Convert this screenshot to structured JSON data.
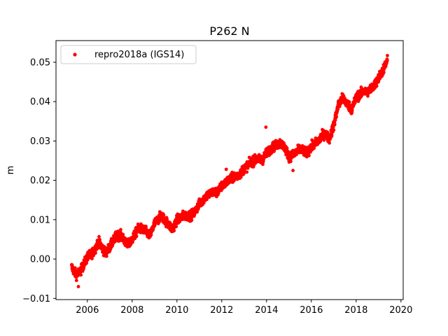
{
  "chart_data": {
    "type": "scatter",
    "title": "P262 N",
    "xlabel": "",
    "ylabel": "m",
    "xlim": [
      2004.6,
      2020.1
    ],
    "ylim": [
      -0.0103,
      0.0555
    ],
    "xticks": [
      2006,
      2008,
      2010,
      2012,
      2014,
      2016,
      2018,
      2020
    ],
    "yticks": [
      -0.01,
      0.0,
      0.01,
      0.02,
      0.03,
      0.04,
      0.05
    ],
    "ytick_labels": [
      "−0.01",
      "0.00",
      "0.01",
      "0.02",
      "0.03",
      "0.04",
      "0.05"
    ],
    "grid": false,
    "legend_position": "upper-left",
    "colors": {
      "series": "#ff0000",
      "axes": "#000000"
    },
    "series": [
      {
        "name": "repro2018a (IGS14)",
        "marker": "dot",
        "trend_points": [
          [
            2005.3,
            -0.002
          ],
          [
            2005.5,
            -0.004
          ],
          [
            2005.7,
            -0.003
          ],
          [
            2006.0,
            0.0005
          ],
          [
            2006.3,
            0.002
          ],
          [
            2006.5,
            0.0045
          ],
          [
            2006.8,
            0.0015
          ],
          [
            2007.0,
            0.003
          ],
          [
            2007.3,
            0.006
          ],
          [
            2007.5,
            0.006
          ],
          [
            2007.8,
            0.0035
          ],
          [
            2008.0,
            0.005
          ],
          [
            2008.3,
            0.008
          ],
          [
            2008.6,
            0.007
          ],
          [
            2008.8,
            0.006
          ],
          [
            2009.0,
            0.009
          ],
          [
            2009.3,
            0.011
          ],
          [
            2009.6,
            0.009
          ],
          [
            2009.8,
            0.0075
          ],
          [
            2010.0,
            0.01
          ],
          [
            2010.3,
            0.011
          ],
          [
            2010.6,
            0.011
          ],
          [
            2010.8,
            0.012
          ],
          [
            2011.0,
            0.014
          ],
          [
            2011.3,
            0.016
          ],
          [
            2011.6,
            0.017
          ],
          [
            2011.8,
            0.017
          ],
          [
            2012.0,
            0.0185
          ],
          [
            2012.3,
            0.02
          ],
          [
            2012.6,
            0.021
          ],
          [
            2012.8,
            0.0215
          ],
          [
            2013.0,
            0.023
          ],
          [
            2013.3,
            0.0245
          ],
          [
            2013.6,
            0.0255
          ],
          [
            2013.8,
            0.025
          ],
          [
            2014.0,
            0.027
          ],
          [
            2014.3,
            0.0285
          ],
          [
            2014.6,
            0.0295
          ],
          [
            2014.8,
            0.0285
          ],
          [
            2015.0,
            0.026
          ],
          [
            2015.2,
            0.0265
          ],
          [
            2015.5,
            0.028
          ],
          [
            2015.8,
            0.027
          ],
          [
            2016.0,
            0.0285
          ],
          [
            2016.3,
            0.03
          ],
          [
            2016.6,
            0.032
          ],
          [
            2016.8,
            0.0305
          ],
          [
            2017.0,
            0.034
          ],
          [
            2017.2,
            0.039
          ],
          [
            2017.4,
            0.041
          ],
          [
            2017.6,
            0.0395
          ],
          [
            2017.8,
            0.038
          ],
          [
            2018.0,
            0.041
          ],
          [
            2018.3,
            0.0425
          ],
          [
            2018.5,
            0.0425
          ],
          [
            2018.8,
            0.044
          ],
          [
            2019.0,
            0.046
          ],
          [
            2019.2,
            0.048
          ],
          [
            2019.4,
            0.0505
          ]
        ]
      }
    ]
  }
}
